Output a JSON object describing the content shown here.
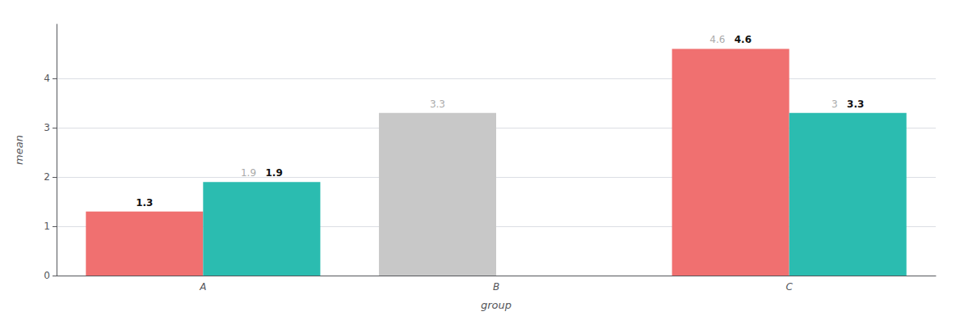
{
  "chart_data": {
    "type": "bar",
    "x_label": "group",
    "y_label": "mean",
    "categories": [
      "A",
      "B",
      "C"
    ],
    "series": [
      {
        "values": [
          1.3,
          3.3,
          4.6
        ],
        "colors": [
          "#F07070",
          "#C8C8C8",
          "#F07070"
        ],
        "value_labels": [
          "1.3",
          null,
          "4.6"
        ],
        "dim_value_labels": [
          null,
          "3.3",
          "4.6"
        ]
      },
      {
        "values": [
          1.9,
          null,
          3.3
        ],
        "colors": [
          "#2BBCB0",
          null,
          "#2BBCB0"
        ],
        "value_labels": [
          "1.9",
          null,
          "3.3"
        ],
        "dim_value_labels": [
          "1.9",
          null,
          "3"
        ]
      }
    ],
    "ylim": [
      0,
      5.1
    ],
    "yticks": [
      0,
      1,
      2,
      3,
      4
    ],
    "grid": true,
    "data_labels": true
  }
}
